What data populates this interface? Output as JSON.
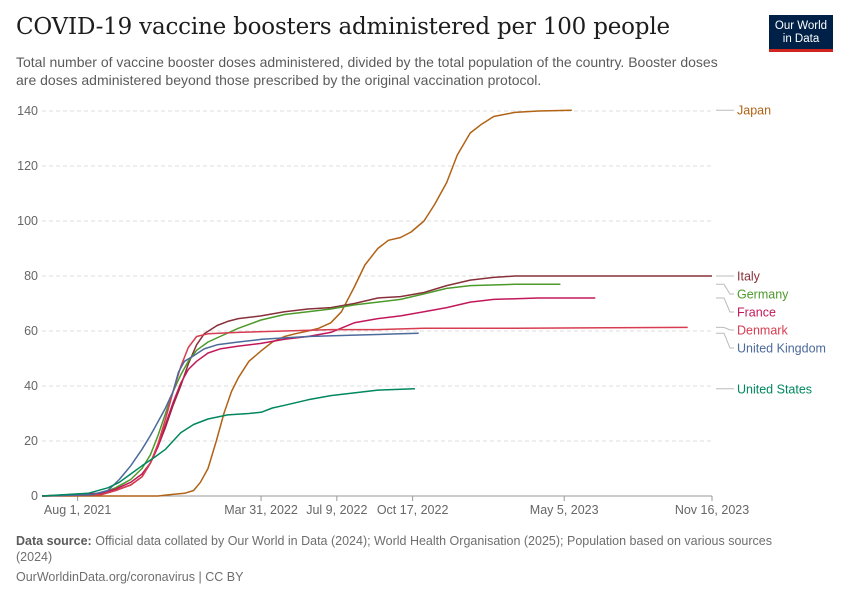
{
  "header": {
    "title": "COVID-19 vaccine boosters administered per 100 people",
    "subtitle": "Total number of vaccine booster doses administered, divided by the total population of the country. Booster doses are doses administered beyond those prescribed by the original vaccination protocol.",
    "logo_line1": "Our World",
    "logo_line2": "in Data"
  },
  "footer": {
    "source_label": "Data source:",
    "source_text": "Official data collated by Our World in Data (2024); World Health Organisation (2025); Population based on various sources (2024)",
    "credit": "OurWorldinData.org/coronavirus | CC BY"
  },
  "chart_data": {
    "type": "line",
    "title": "COVID-19 vaccine boosters administered per 100 people",
    "xlabel": "",
    "ylabel": "",
    "x_is_date": true,
    "xlim": [
      "2021-06-15",
      "2023-11-16"
    ],
    "ylim": [
      0,
      140
    ],
    "grid": true,
    "y_ticks": [
      0,
      20,
      40,
      60,
      80,
      100,
      120,
      140
    ],
    "x_ticks": [
      {
        "date": "2021-08-01",
        "label": "Aug 1, 2021"
      },
      {
        "date": "2022-03-31",
        "label": "Mar 31, 2022"
      },
      {
        "date": "2022-07-09",
        "label": "Jul 9, 2022"
      },
      {
        "date": "2022-10-17",
        "label": "Oct 17, 2022"
      },
      {
        "date": "2023-05-05",
        "label": "May 5, 2023"
      },
      {
        "date": "2023-11-16",
        "label": "Nov 16, 2023"
      }
    ],
    "legend_placement": "right (labels at line ends)",
    "series": [
      {
        "name": "Japan",
        "color": "#b16214",
        "points": [
          [
            "2021-06-15",
            0
          ],
          [
            "2021-11-15",
            0
          ],
          [
            "2021-12-01",
            0.5
          ],
          [
            "2021-12-20",
            1
          ],
          [
            "2022-01-01",
            2
          ],
          [
            "2022-01-10",
            5
          ],
          [
            "2022-01-20",
            10
          ],
          [
            "2022-01-31",
            20
          ],
          [
            "2022-02-10",
            30
          ],
          [
            "2022-02-20",
            38
          ],
          [
            "2022-03-01",
            43
          ],
          [
            "2022-03-15",
            49
          ],
          [
            "2022-04-01",
            53
          ],
          [
            "2022-04-15",
            56
          ],
          [
            "2022-05-01",
            58
          ],
          [
            "2022-05-15",
            59
          ],
          [
            "2022-06-01",
            60
          ],
          [
            "2022-06-15",
            61
          ],
          [
            "2022-07-01",
            63
          ],
          [
            "2022-07-15",
            67
          ],
          [
            "2022-08-01",
            76
          ],
          [
            "2022-08-15",
            84
          ],
          [
            "2022-09-01",
            90
          ],
          [
            "2022-09-15",
            93
          ],
          [
            "2022-10-01",
            94
          ],
          [
            "2022-10-15",
            96
          ],
          [
            "2022-11-01",
            100
          ],
          [
            "2022-11-15",
            106
          ],
          [
            "2022-12-01",
            114
          ],
          [
            "2022-12-15",
            124
          ],
          [
            "2023-01-01",
            132
          ],
          [
            "2023-01-15",
            135
          ],
          [
            "2023-02-01",
            138
          ],
          [
            "2023-03-01",
            139.5
          ],
          [
            "2023-04-01",
            140
          ],
          [
            "2023-05-15",
            140.3
          ]
        ]
      },
      {
        "name": "Italy",
        "color": "#883039",
        "points": [
          [
            "2021-06-15",
            0
          ],
          [
            "2021-09-01",
            0.5
          ],
          [
            "2021-09-20",
            2
          ],
          [
            "2021-10-10",
            4
          ],
          [
            "2021-10-25",
            7
          ],
          [
            "2021-11-05",
            12
          ],
          [
            "2021-11-15",
            18
          ],
          [
            "2021-11-25",
            25
          ],
          [
            "2021-12-05",
            33
          ],
          [
            "2021-12-15",
            40
          ],
          [
            "2021-12-25",
            48
          ],
          [
            "2022-01-05",
            55
          ],
          [
            "2022-01-15",
            59
          ],
          [
            "2022-02-01",
            62
          ],
          [
            "2022-02-15",
            63.5
          ],
          [
            "2022-03-01",
            64.5
          ],
          [
            "2022-03-31",
            65.5
          ],
          [
            "2022-05-01",
            67
          ],
          [
            "2022-06-01",
            68
          ],
          [
            "2022-07-01",
            68.5
          ],
          [
            "2022-08-01",
            70
          ],
          [
            "2022-09-01",
            72
          ],
          [
            "2022-10-01",
            72.5
          ],
          [
            "2022-11-01",
            74
          ],
          [
            "2022-12-01",
            76.5
          ],
          [
            "2023-01-01",
            78.5
          ],
          [
            "2023-02-01",
            79.5
          ],
          [
            "2023-03-01",
            80
          ],
          [
            "2023-06-01",
            80
          ],
          [
            "2023-11-16",
            80
          ]
        ]
      },
      {
        "name": "Germany",
        "color": "#4c9a2a",
        "points": [
          [
            "2021-06-15",
            0
          ],
          [
            "2021-09-01",
            1
          ],
          [
            "2021-09-20",
            3
          ],
          [
            "2021-10-10",
            6
          ],
          [
            "2021-10-25",
            10
          ],
          [
            "2021-11-05",
            15
          ],
          [
            "2021-11-15",
            22
          ],
          [
            "2021-11-25",
            30
          ],
          [
            "2021-12-05",
            38
          ],
          [
            "2021-12-15",
            44
          ],
          [
            "2021-12-25",
            49
          ],
          [
            "2022-01-05",
            53
          ],
          [
            "2022-01-20",
            56
          ],
          [
            "2022-02-05",
            58
          ],
          [
            "2022-03-01",
            61
          ],
          [
            "2022-03-31",
            64
          ],
          [
            "2022-05-01",
            66
          ],
          [
            "2022-06-01",
            67
          ],
          [
            "2022-07-01",
            68
          ],
          [
            "2022-08-01",
            69.5
          ],
          [
            "2022-09-01",
            70.5
          ],
          [
            "2022-10-01",
            71.5
          ],
          [
            "2022-11-01",
            73.5
          ],
          [
            "2022-12-01",
            75.5
          ],
          [
            "2023-01-01",
            76.5
          ],
          [
            "2023-03-01",
            77
          ],
          [
            "2023-04-30",
            77
          ]
        ]
      },
      {
        "name": "France",
        "color": "#c2185b",
        "points": [
          [
            "2021-06-15",
            0
          ],
          [
            "2021-09-01",
            1
          ],
          [
            "2021-09-20",
            2.5
          ],
          [
            "2021-10-10",
            5
          ],
          [
            "2021-10-25",
            8
          ],
          [
            "2021-11-05",
            12
          ],
          [
            "2021-11-15",
            18
          ],
          [
            "2021-11-25",
            26
          ],
          [
            "2021-12-05",
            34
          ],
          [
            "2021-12-15",
            41
          ],
          [
            "2021-12-25",
            46
          ],
          [
            "2022-01-05",
            49
          ],
          [
            "2022-01-20",
            52
          ],
          [
            "2022-02-05",
            53.5
          ],
          [
            "2022-03-01",
            54.5
          ],
          [
            "2022-03-31",
            55.5
          ],
          [
            "2022-05-01",
            57
          ],
          [
            "2022-06-01",
            58
          ],
          [
            "2022-07-01",
            59.5
          ],
          [
            "2022-08-01",
            63
          ],
          [
            "2022-09-01",
            64.5
          ],
          [
            "2022-10-01",
            65.5
          ],
          [
            "2022-11-01",
            67
          ],
          [
            "2022-12-01",
            68.5
          ],
          [
            "2023-01-01",
            70.5
          ],
          [
            "2023-02-01",
            71.5
          ],
          [
            "2023-04-01",
            72
          ],
          [
            "2023-06-15",
            72
          ]
        ]
      },
      {
        "name": "Denmark",
        "color": "#d73c50",
        "points": [
          [
            "2021-06-15",
            0
          ],
          [
            "2021-09-01",
            0.5
          ],
          [
            "2021-09-20",
            2
          ],
          [
            "2021-10-10",
            4
          ],
          [
            "2021-10-25",
            7
          ],
          [
            "2021-11-05",
            12
          ],
          [
            "2021-11-15",
            19
          ],
          [
            "2021-11-25",
            28
          ],
          [
            "2021-12-05",
            38
          ],
          [
            "2021-12-15",
            47
          ],
          [
            "2021-12-25",
            54
          ],
          [
            "2022-01-05",
            58
          ],
          [
            "2022-01-20",
            59
          ],
          [
            "2022-03-01",
            59.5
          ],
          [
            "2022-05-01",
            60
          ],
          [
            "2022-07-01",
            60.5
          ],
          [
            "2022-09-01",
            60.5
          ],
          [
            "2022-11-01",
            61
          ],
          [
            "2023-03-01",
            61
          ],
          [
            "2023-07-01",
            61.2
          ],
          [
            "2023-10-15",
            61.3
          ]
        ]
      },
      {
        "name": "United Kingdom",
        "color": "#4c6a9c",
        "points": [
          [
            "2021-06-15",
            0
          ],
          [
            "2021-08-20",
            0.5
          ],
          [
            "2021-09-10",
            2
          ],
          [
            "2021-09-25",
            6
          ],
          [
            "2021-10-10",
            11
          ],
          [
            "2021-10-25",
            17
          ],
          [
            "2021-11-05",
            22
          ],
          [
            "2021-11-15",
            27
          ],
          [
            "2021-11-25",
            32
          ],
          [
            "2021-12-05",
            38
          ],
          [
            "2021-12-12",
            45
          ],
          [
            "2021-12-20",
            49
          ],
          [
            "2022-01-01",
            51
          ],
          [
            "2022-01-15",
            53.5
          ],
          [
            "2022-02-01",
            55
          ],
          [
            "2022-03-01",
            56
          ],
          [
            "2022-04-01",
            57
          ],
          [
            "2022-06-01",
            58
          ],
          [
            "2022-08-01",
            58.5
          ],
          [
            "2022-10-01",
            59
          ],
          [
            "2022-10-25",
            59.2
          ]
        ]
      },
      {
        "name": "United States",
        "color": "#00875e",
        "points": [
          [
            "2021-06-15",
            0
          ],
          [
            "2021-08-15",
            1
          ],
          [
            "2021-09-10",
            3
          ],
          [
            "2021-09-25",
            5
          ],
          [
            "2021-10-10",
            8
          ],
          [
            "2021-10-25",
            11
          ],
          [
            "2021-11-10",
            14
          ],
          [
            "2021-11-25",
            17
          ],
          [
            "2021-12-05",
            20
          ],
          [
            "2021-12-15",
            23
          ],
          [
            "2022-01-01",
            26
          ],
          [
            "2022-01-20",
            28
          ],
          [
            "2022-02-15",
            29.5
          ],
          [
            "2022-03-15",
            30
          ],
          [
            "2022-04-01",
            30.5
          ],
          [
            "2022-04-15",
            32
          ],
          [
            "2022-05-01",
            33
          ],
          [
            "2022-06-01",
            35
          ],
          [
            "2022-07-01",
            36.5
          ],
          [
            "2022-08-01",
            37.5
          ],
          [
            "2022-09-01",
            38.5
          ],
          [
            "2022-10-20",
            39
          ]
        ]
      }
    ]
  }
}
